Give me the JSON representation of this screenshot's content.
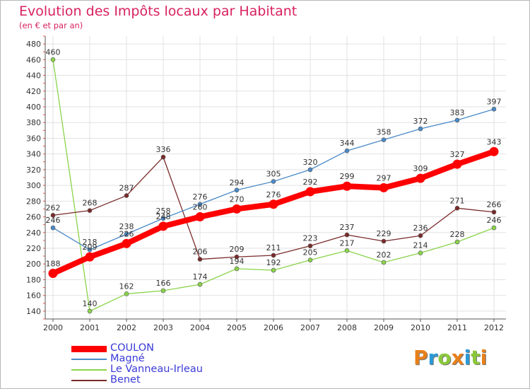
{
  "chart_data": {
    "type": "line",
    "title": "Evolution des Impôts locaux par Habitant",
    "subtitle": "(en € et par an)",
    "x": [
      "2000",
      "2001",
      "2002",
      "2003",
      "2004",
      "2005",
      "2006",
      "2007",
      "2008",
      "2009",
      "2010",
      "2011",
      "2012"
    ],
    "ylim": [
      130,
      490
    ],
    "yticks": [
      140,
      160,
      180,
      200,
      220,
      240,
      260,
      280,
      300,
      320,
      340,
      360,
      380,
      400,
      420,
      440,
      460,
      480
    ],
    "grid": true,
    "legend_position": "bottom-left",
    "series": [
      {
        "name": "COULON",
        "color": "#ff0000",
        "values": [
          188,
          209,
          226,
          248,
          260,
          270,
          276,
          292,
          299,
          297,
          309,
          327,
          343
        ]
      },
      {
        "name": "Magné",
        "color": "#4a8ac8",
        "values": [
          246,
          218,
          238,
          258,
          276,
          294,
          305,
          320,
          344,
          358,
          372,
          383,
          397
        ]
      },
      {
        "name": "Le Vanneau-Irleau",
        "color": "#8ad44a",
        "values": [
          460,
          140,
          162,
          166,
          174,
          194,
          192,
          205,
          217,
          202,
          214,
          228,
          246
        ]
      },
      {
        "name": "Benet",
        "color": "#7a2a2a",
        "values": [
          262,
          268,
          287,
          336,
          206,
          209,
          211,
          223,
          237,
          229,
          236,
          271,
          266
        ]
      }
    ],
    "logo": {
      "text": "Proxiti",
      "letters": [
        "P",
        "r",
        "o",
        "x",
        "i",
        "t",
        "i"
      ],
      "colors": [
        "#e8801a",
        "#2a9ad8",
        "#8ac83a",
        "#e8801a",
        "#2a9ad8",
        "#8ac83a",
        "#e8801a"
      ]
    }
  }
}
